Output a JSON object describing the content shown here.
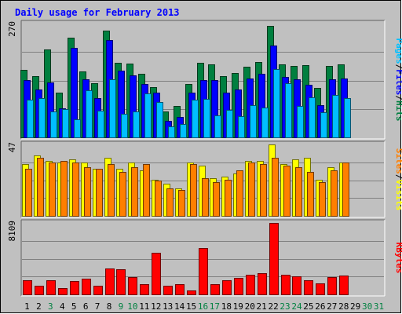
{
  "chart_data": {
    "title": "Daily usage for February 2013",
    "days": [
      "1",
      "2",
      "3",
      "4",
      "5",
      "6",
      "7",
      "8",
      "9",
      "10",
      "11",
      "12",
      "13",
      "14",
      "15",
      "16",
      "17",
      "18",
      "19",
      "20",
      "21",
      "22",
      "23",
      "24",
      "25",
      "26",
      "27",
      "28",
      "29",
      "30",
      "31"
    ],
    "weekend_days": [
      "3",
      "9",
      "10",
      "16",
      "17",
      "23",
      "24",
      "30",
      "31"
    ],
    "panels": [
      {
        "type": "bar",
        "max_label": "270",
        "ylim": [
          0,
          270
        ],
        "series": [
          {
            "name": "Hits",
            "color": "#007f3f",
            "values": [
              160,
              146,
              209,
              107,
              236,
              157,
              128,
              253,
              176,
              175,
              150,
              120,
              62,
              75,
              127,
              176,
              173,
              145,
              152,
              167,
              179,
              264,
              173,
              170,
              172,
              118,
              169,
              173,
              0,
              0,
              0
            ]
          },
          {
            "name": "Files",
            "color": "#0000ff",
            "values": [
              135,
              113,
              130,
              69,
              212,
              138,
              93,
              230,
              159,
              147,
              127,
              107,
              39,
              48,
              107,
              135,
              135,
              107,
              114,
              139,
              150,
              217,
              144,
              138,
              124,
              77,
              138,
              140,
              0,
              0,
              0
            ]
          },
          {
            "name": "Pages",
            "color": "#00bfff",
            "values": [
              90,
              94,
              62,
              67,
              43,
              111,
              63,
              138,
              55,
              62,
              104,
              84,
              26,
              32,
              90,
              91,
              53,
              66,
              50,
              77,
              70,
              162,
              129,
              75,
              95,
              60,
              101,
              93,
              0,
              0,
              0
            ]
          }
        ],
        "legend": [
          "Pages",
          "/",
          "Files",
          "/",
          "Hits"
        ]
      },
      {
        "type": "bar",
        "max_label": "47",
        "ylim": [
          0,
          47
        ],
        "series": [
          {
            "name": "Visits",
            "color": "#ffff00",
            "values": [
              34,
              40,
              36,
              35,
              37,
              35,
              31,
              38,
              31,
              35,
              30,
              24,
              21,
              18,
              35,
              33,
              25,
              26,
              28,
              36,
              36,
              47,
              34,
              37,
              38,
              24,
              32,
              35,
              0,
              0,
              0
            ]
          },
          {
            "name": "Sites",
            "color": "#ff7f00",
            "values": [
              31,
              38,
              35,
              36,
              35,
              32,
              31,
              34,
              29,
              32,
              34,
              23,
              18,
              17,
              34,
              25,
              22,
              24,
              30,
              35,
              34,
              38,
              33,
              32,
              29,
              22,
              30,
              35,
              0,
              0,
              0
            ]
          }
        ],
        "legend": [
          "Sites",
          "/",
          "Visits"
        ]
      },
      {
        "type": "bar",
        "max_label": "8109",
        "ylim": [
          0,
          8109
        ],
        "series": [
          {
            "name": "KBytes",
            "color": "#ff0000",
            "values": [
              1640,
              1000,
              1640,
              740,
              1540,
              1760,
              1010,
              2960,
              2890,
              1980,
              1120,
              4760,
              1020,
              1130,
              480,
              5240,
              1130,
              1590,
              1830,
              2210,
              2390,
              8109,
              2200,
              2080,
              1630,
              1290,
              1950,
              2150,
              0,
              0,
              0
            ]
          }
        ],
        "legend": [
          "KBytes"
        ]
      }
    ],
    "grid": true
  }
}
